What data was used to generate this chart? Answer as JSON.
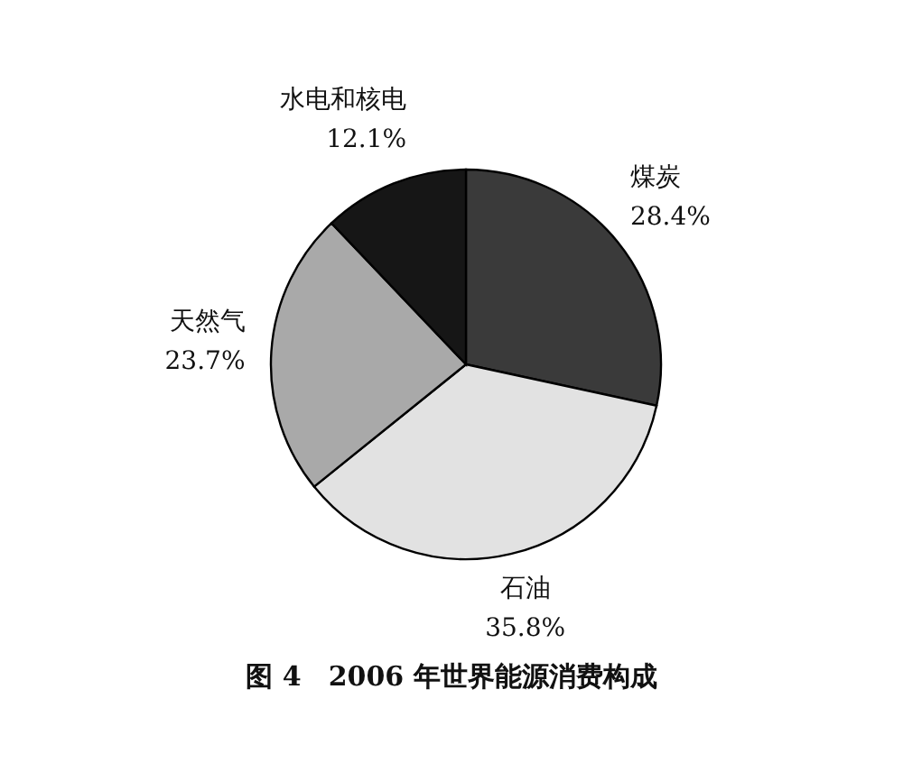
{
  "chart_data": {
    "type": "pie",
    "title": "图 4　2006 年世界能源消费构成",
    "categories": [
      "煤炭",
      "石油",
      "天然气",
      "水电和核电"
    ],
    "values": [
      28.4,
      35.8,
      23.7,
      12.1
    ],
    "value_labels": [
      "28.4%",
      "35.8%",
      "23.7%",
      "12.1%"
    ],
    "colors": [
      "#3a3a3a",
      "#e2e2e2",
      "#a9a9a9",
      "#161616"
    ]
  }
}
